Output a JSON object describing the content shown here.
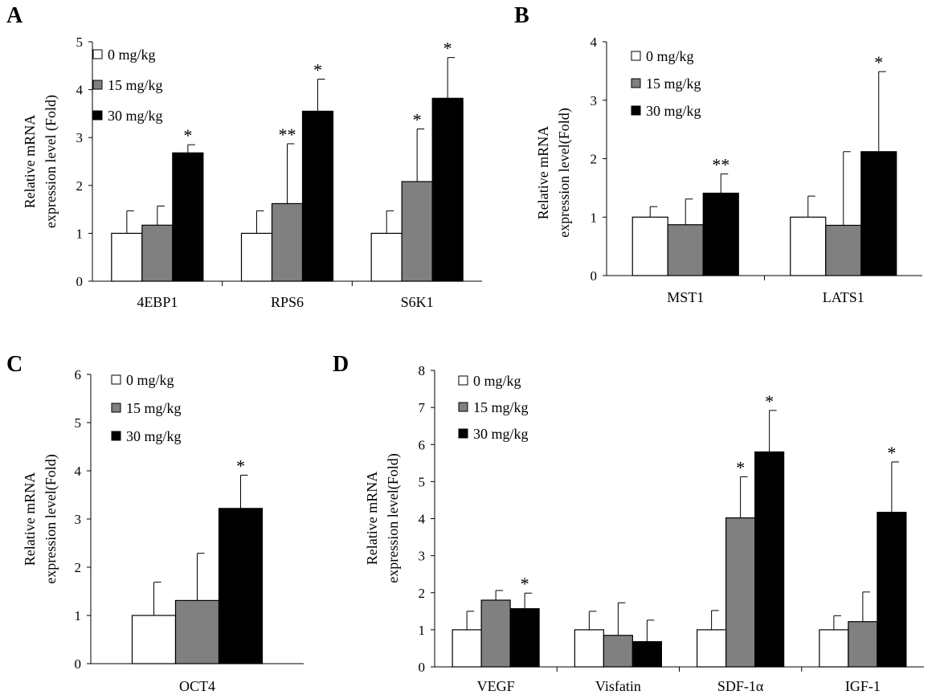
{
  "chart_data": [
    {
      "panel": "A",
      "type": "bar",
      "ylabel": [
        "Relative  mRNA",
        "expression level (Fold)"
      ],
      "ylim": [
        0,
        5
      ],
      "yticks": [
        0,
        1,
        2,
        3,
        4,
        5
      ],
      "categories": [
        "4EBP1",
        "RPS6",
        "S6K1"
      ],
      "legend": "top-left",
      "series": [
        {
          "name": "0 mg/kg",
          "color": "#ffffff",
          "values": [
            1,
            1,
            1
          ],
          "errors": [
            0.47,
            0.47,
            0.47
          ],
          "significance": [
            "",
            "",
            ""
          ]
        },
        {
          "name": "15 mg/kg",
          "color": "#808080",
          "values": [
            1.17,
            1.62,
            2.08
          ],
          "errors": [
            0.4,
            1.25,
            1.1
          ],
          "significance": [
            "",
            "**",
            "*"
          ]
        },
        {
          "name": "30 mg/kg",
          "color": "#000000",
          "values": [
            2.68,
            3.55,
            3.82
          ],
          "errors": [
            0.17,
            0.67,
            0.85
          ],
          "significance": [
            "*",
            "*",
            "*"
          ]
        }
      ]
    },
    {
      "panel": "B",
      "type": "bar",
      "ylabel": [
        "Relative  mRNA",
        "expression level(Fold)"
      ],
      "ylim": [
        0,
        4
      ],
      "yticks": [
        0,
        1,
        2,
        3,
        4
      ],
      "categories": [
        "MST1",
        "LATS1"
      ],
      "legend": "top-left",
      "series": [
        {
          "name": "0 mg/kg",
          "color": "#ffffff",
          "values": [
            1,
            1
          ],
          "errors": [
            0.18,
            0.36
          ],
          "significance": [
            "",
            ""
          ]
        },
        {
          "name": "15 mg/kg",
          "color": "#808080",
          "values": [
            0.87,
            0.86
          ],
          "errors": [
            0.44,
            1.26
          ],
          "significance": [
            "",
            ""
          ]
        },
        {
          "name": "30 mg/kg",
          "color": "#000000",
          "values": [
            1.41,
            2.12
          ],
          "errors": [
            0.33,
            1.37
          ],
          "significance": [
            "**",
            "*"
          ]
        }
      ]
    },
    {
      "panel": "C",
      "type": "bar",
      "ylabel": [
        "Relative  mRNA",
        "expression level(Fold)"
      ],
      "ylim": [
        0,
        6
      ],
      "yticks": [
        0,
        1,
        2,
        3,
        4,
        5,
        6
      ],
      "categories": [
        "OCT4"
      ],
      "legend": "top-left",
      "series": [
        {
          "name": "0 mg/kg",
          "color": "#ffffff",
          "values": [
            1
          ],
          "errors": [
            0.69
          ],
          "significance": [
            ""
          ]
        },
        {
          "name": "15 mg/kg",
          "color": "#808080",
          "values": [
            1.31
          ],
          "errors": [
            0.98
          ],
          "significance": [
            ""
          ]
        },
        {
          "name": "30 mg/kg",
          "color": "#000000",
          "values": [
            3.22
          ],
          "errors": [
            0.69
          ],
          "significance": [
            "*"
          ]
        }
      ]
    },
    {
      "panel": "D",
      "type": "bar",
      "ylabel": [
        "Relative  mRNA",
        "expression level(Fold)"
      ],
      "ylim": [
        0,
        8
      ],
      "yticks": [
        0,
        1,
        2,
        3,
        4,
        5,
        6,
        7,
        8
      ],
      "categories": [
        "VEGF",
        "Visfatin",
        "SDF-1α",
        "IGF-1"
      ],
      "legend": "top-left",
      "series": [
        {
          "name": "0 mg/kg",
          "color": "#ffffff",
          "values": [
            1,
            1,
            1,
            1
          ],
          "errors": [
            0.5,
            0.5,
            0.52,
            0.38
          ],
          "significance": [
            "",
            "",
            "",
            ""
          ]
        },
        {
          "name": "15 mg/kg",
          "color": "#808080",
          "values": [
            1.8,
            0.85,
            4.02,
            1.22
          ],
          "errors": [
            0.26,
            0.88,
            1.11,
            0.8
          ],
          "significance": [
            "",
            "",
            "*",
            ""
          ]
        },
        {
          "name": "30 mg/kg",
          "color": "#000000",
          "values": [
            1.57,
            0.68,
            5.8,
            4.17
          ],
          "errors": [
            0.42,
            0.58,
            1.12,
            1.36
          ],
          "significance": [
            "*",
            "",
            "*",
            "*"
          ]
        }
      ]
    }
  ]
}
